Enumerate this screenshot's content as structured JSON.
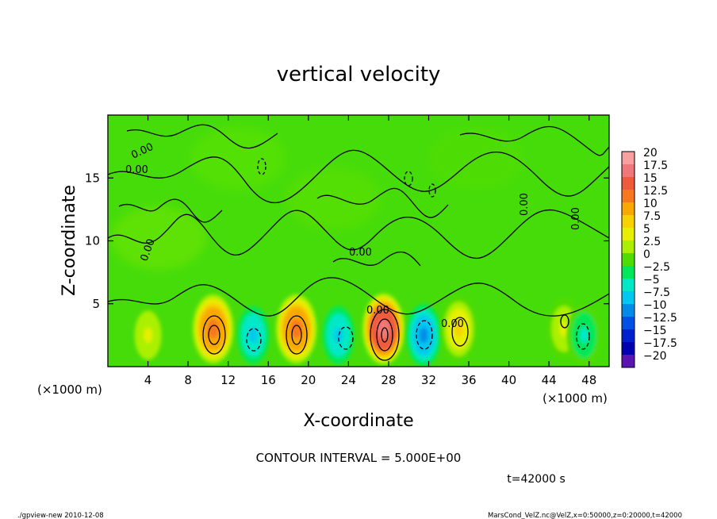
{
  "chart_data": {
    "type": "heatmap",
    "title": "vertical velocity",
    "xlabel": "X-coordinate",
    "ylabel": "Z-coordinate",
    "x_unit_left": "(×1000 m)",
    "x_unit_right": "(×1000 m)",
    "x_ticks": [
      "4",
      "8",
      "12",
      "16",
      "20",
      "24",
      "28",
      "32",
      "36",
      "40",
      "44",
      "48"
    ],
    "x_tick_values": [
      4,
      8,
      12,
      16,
      20,
      24,
      28,
      32,
      36,
      40,
      44,
      48
    ],
    "y_ticks": [
      "5",
      "10",
      "15"
    ],
    "y_tick_values": [
      5,
      10,
      15
    ],
    "xlim": [
      0,
      50
    ],
    "ylim": [
      0,
      20
    ],
    "contour_label": "0.00",
    "contour_interval_text": "CONTOUR INTERVAL = 5.000E+00",
    "time_text": "t=42000 s",
    "colorbar": {
      "labels": [
        "20",
        "17.5",
        "15",
        "12.5",
        "10",
        "7.5",
        "5",
        "2.5",
        "0",
        "-2.5",
        "-5",
        "-7.5",
        "-10",
        "-12.5",
        "-15",
        "-17.5",
        "-20"
      ],
      "colors": [
        "#f8a0a0",
        "#f07878",
        "#f05a3c",
        "#f8781e",
        "#f8a800",
        "#f8d200",
        "#e6f000",
        "#aaf000",
        "#50dc00",
        "#00e858",
        "#00e8c8",
        "#00c8f0",
        "#008ce8",
        "#0050e6",
        "#0020d0",
        "#0000b0",
        "#5a14b4"
      ]
    },
    "cells": [
      {
        "x": 4,
        "z": 2.5,
        "w": 5
      },
      {
        "x": 10.5,
        "z": 3,
        "w": 12
      },
      {
        "x": 14.5,
        "z": 2.5,
        "w": -7
      },
      {
        "x": 18.8,
        "z": 3,
        "w": 12
      },
      {
        "x": 23,
        "z": 2.5,
        "w": -7
      },
      {
        "x": 27.5,
        "z": 3,
        "w": 17
      },
      {
        "x": 31.5,
        "z": 2.5,
        "w": -9
      },
      {
        "x": 35,
        "z": 3,
        "w": 8
      },
      {
        "x": 45.5,
        "z": 3,
        "w": 6
      },
      {
        "x": 47.5,
        "z": 2.5,
        "w": -6
      }
    ]
  },
  "footer": {
    "left": "./gpview-new  2010-12-08",
    "right": "MarsCond_VelZ.nc@VelZ,x=0:50000,z=0:20000,t=42000"
  }
}
